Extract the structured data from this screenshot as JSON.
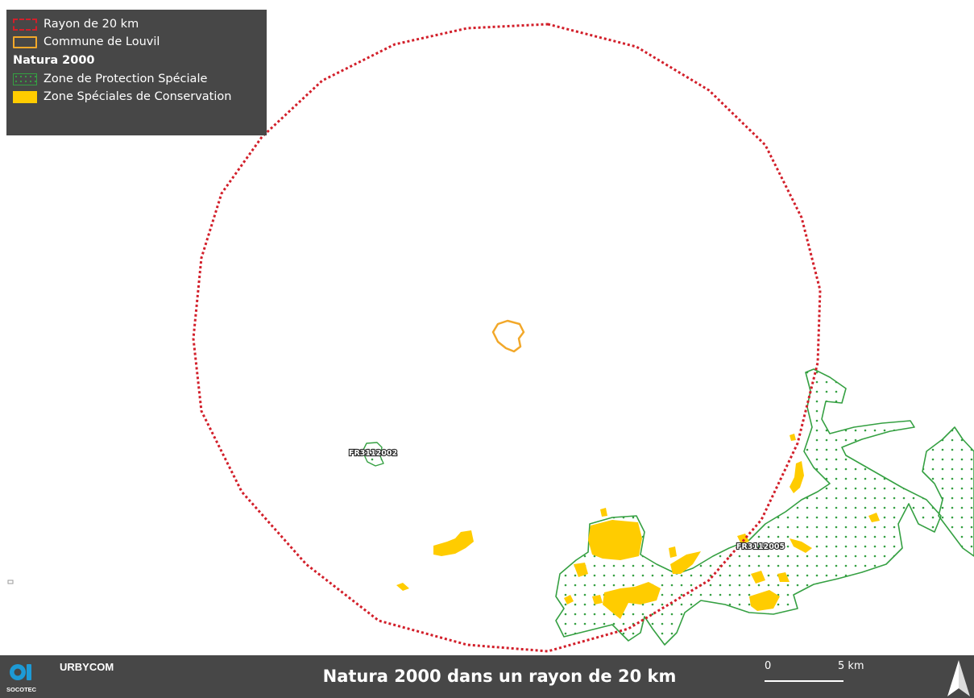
{
  "legend": {
    "items": [
      {
        "label": "Rayon de 20 km",
        "icon": "dashed-red-square-icon"
      },
      {
        "label": "Commune de Louvil",
        "icon": "orange-outline-square-icon"
      }
    ],
    "section_title": "Natura 2000",
    "natura_items": [
      {
        "label": "Zone de Protection Spéciale",
        "icon": "green-dotted-square-icon"
      },
      {
        "label": "Zone Spéciales de Conservation",
        "icon": "yellow-filled-square-icon"
      }
    ]
  },
  "map": {
    "site_labels": [
      "FR3112002",
      "FR3112005"
    ]
  },
  "footer": {
    "brand": "URBYCOM",
    "logo_text": "SOCOTEC",
    "title": "Natura 2000 dans un rayon de 20 km",
    "scale_start": "0",
    "scale_end": "5 km"
  },
  "colors": {
    "radius": "#d21f2a",
    "commune": "#f2a82a",
    "zps": "#35a042",
    "zsc": "#ffcc00",
    "panel": "#474747"
  }
}
